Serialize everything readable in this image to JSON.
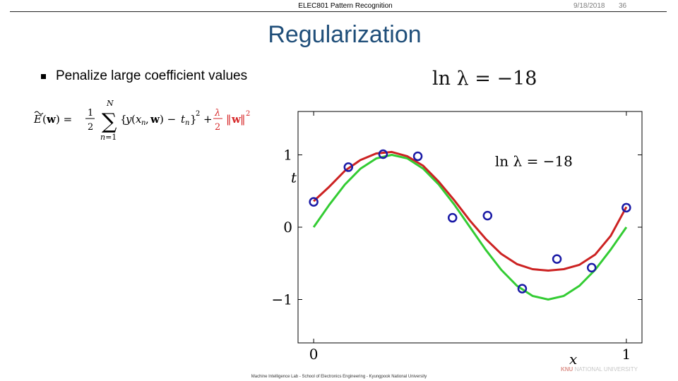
{
  "header": {
    "course": "ELEC801 Pattern Recognition",
    "date": "9/18/2018",
    "page": "36"
  },
  "slide": {
    "title": "Regularization",
    "bullet": "Penalize large coefficient values",
    "plot_title": "ln λ = −18"
  },
  "footer": {
    "text": "Machine Intelligence Lab - School of Electronics Engineering - Kyungpook National University",
    "logo": "KNU",
    "logo_text": "NATIONAL UNIVERSITY"
  },
  "colors": {
    "title": "#1f4e79",
    "formula_penalty": "#d62728",
    "fit_curve": "#cc2222",
    "true_curve": "#33cc33",
    "points": "#1a1aa6"
  },
  "chart_data": {
    "type": "scatter",
    "annotation": "ln λ = −18",
    "xlabel": "x",
    "ylabel": "t",
    "xlim": [
      -0.05,
      1.05
    ],
    "ylim": [
      -1.6,
      1.6
    ],
    "xticks": [
      {
        "v": 0,
        "label": "0"
      },
      {
        "v": 1,
        "label": "1"
      }
    ],
    "yticks": [
      {
        "v": -1,
        "label": "−1"
      },
      {
        "v": 0,
        "label": "0"
      },
      {
        "v": 1,
        "label": "1"
      }
    ],
    "points": {
      "x": [
        0.0,
        0.111,
        0.222,
        0.333,
        0.444,
        0.556,
        0.667,
        0.778,
        0.889,
        1.0
      ],
      "y": [
        0.35,
        0.83,
        1.01,
        0.98,
        0.13,
        0.16,
        -0.85,
        -0.44,
        -0.56,
        0.27
      ]
    },
    "series": [
      {
        "type": "line",
        "x": [
          0.0,
          0.05,
          0.1,
          0.15,
          0.2,
          0.25,
          0.3,
          0.35,
          0.4,
          0.45,
          0.5,
          0.55,
          0.6,
          0.65,
          0.7,
          0.75,
          0.8,
          0.85,
          0.9,
          0.95,
          1.0
        ],
        "y": [
          0.36,
          0.56,
          0.78,
          0.93,
          1.02,
          1.04,
          0.98,
          0.85,
          0.63,
          0.37,
          0.09,
          -0.16,
          -0.37,
          -0.51,
          -0.58,
          -0.6,
          -0.58,
          -0.52,
          -0.38,
          -0.12,
          0.28
        ]
      },
      {
        "type": "line",
        "x": [
          0.0,
          0.05,
          0.1,
          0.15,
          0.2,
          0.25,
          0.3,
          0.35,
          0.4,
          0.45,
          0.5,
          0.55,
          0.6,
          0.65,
          0.7,
          0.75,
          0.8,
          0.85,
          0.9,
          0.95,
          1.0
        ],
        "y": [
          0.0,
          0.31,
          0.59,
          0.81,
          0.95,
          1.0,
          0.95,
          0.81,
          0.59,
          0.31,
          0.0,
          -0.31,
          -0.59,
          -0.81,
          -0.95,
          -1.0,
          -0.95,
          -0.81,
          -0.59,
          -0.31,
          0.0
        ]
      }
    ]
  }
}
